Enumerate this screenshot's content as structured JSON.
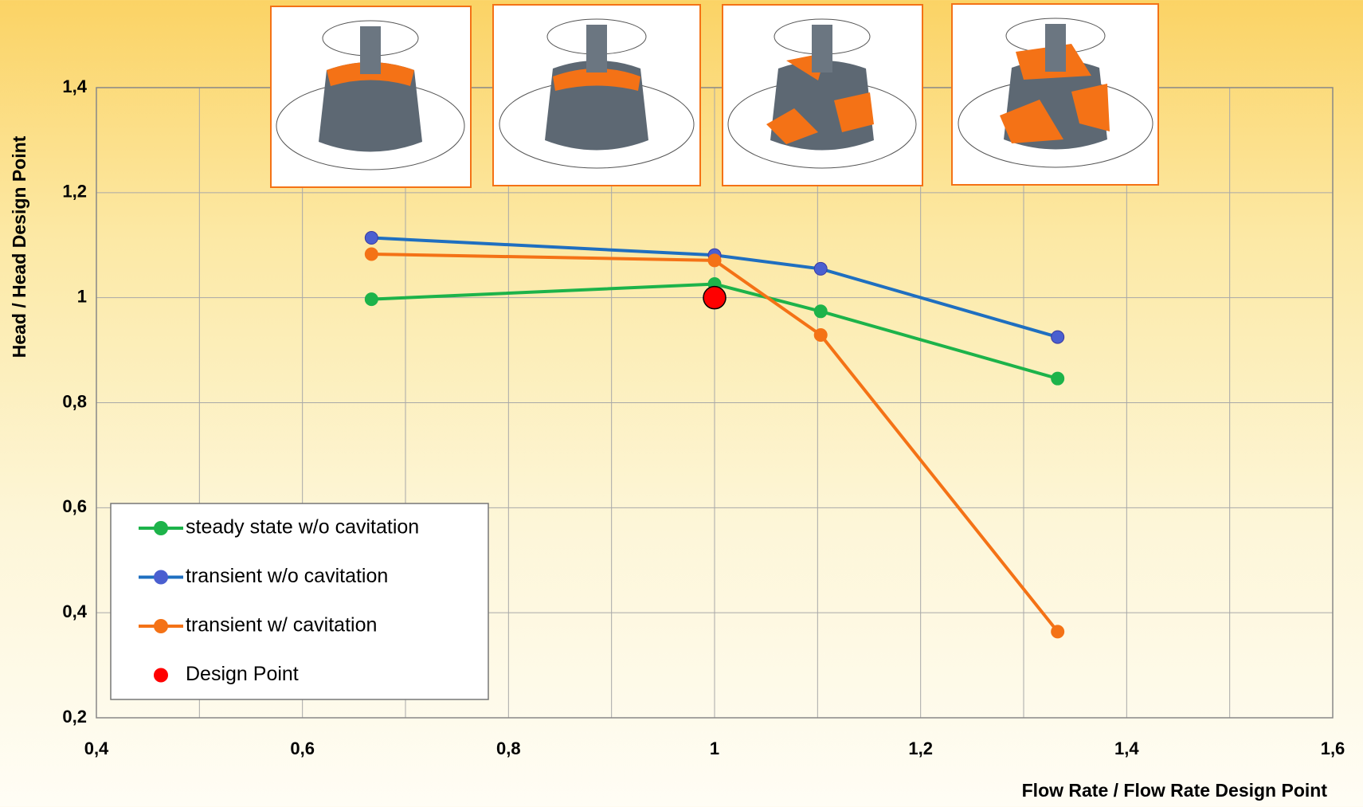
{
  "chart_data": {
    "type": "line",
    "x_label": "Flow Rate / Flow Rate Design Point",
    "y_label": "Head / Head Design Point",
    "xlim": [
      0.4,
      1.6
    ],
    "xticks": [
      {
        "value": 0.4,
        "label": "0,4"
      },
      {
        "value": 0.6,
        "label": "0,6"
      },
      {
        "value": 0.8,
        "label": "0,8"
      },
      1,
      {
        "value": 1.2,
        "label": "1,2"
      },
      {
        "value": 1.4,
        "label": "1,4"
      },
      {
        "value": 1.6,
        "label": "1,6"
      }
    ],
    "xminorticks": [
      0.5,
      0.7,
      0.9,
      1.1,
      1.3,
      1.5
    ],
    "ylim": [
      0.2,
      1.4
    ],
    "yticks": [
      {
        "value": 0.2,
        "label": "0,2"
      },
      {
        "value": 0.4,
        "label": "0,4"
      },
      {
        "value": 0.6,
        "label": "0,6"
      },
      {
        "value": 0.8,
        "label": "0,8"
      },
      1,
      {
        "value": 1.2,
        "label": "1,2"
      },
      {
        "value": 1.4,
        "label": "1,4"
      }
    ],
    "grid": true,
    "legend": "lower left",
    "series": [
      {
        "name": "steady state w/o cavitation",
        "color": "#1db34a",
        "x": [
          0.667,
          1.0,
          1.103,
          1.333
        ],
        "values": [
          0.997,
          1.026,
          0.974,
          0.846
        ]
      },
      {
        "name": "transient w/o cavitation",
        "color": "#1f6fc0",
        "marker_color": "#4a5fd0",
        "x": [
          0.667,
          1.0,
          1.103,
          1.333
        ],
        "values": [
          1.114,
          1.081,
          1.055,
          0.925
        ]
      },
      {
        "name": "transient w/ cavitation",
        "color": "#f47216",
        "x": [
          0.667,
          1.0,
          1.103,
          1.333
        ],
        "values": [
          1.083,
          1.071,
          0.929,
          0.364
        ]
      },
      {
        "name": "Design Point",
        "color": "#ff0000",
        "x": [
          1
        ],
        "values": [
          1
        ],
        "line": false
      }
    ]
  }
}
